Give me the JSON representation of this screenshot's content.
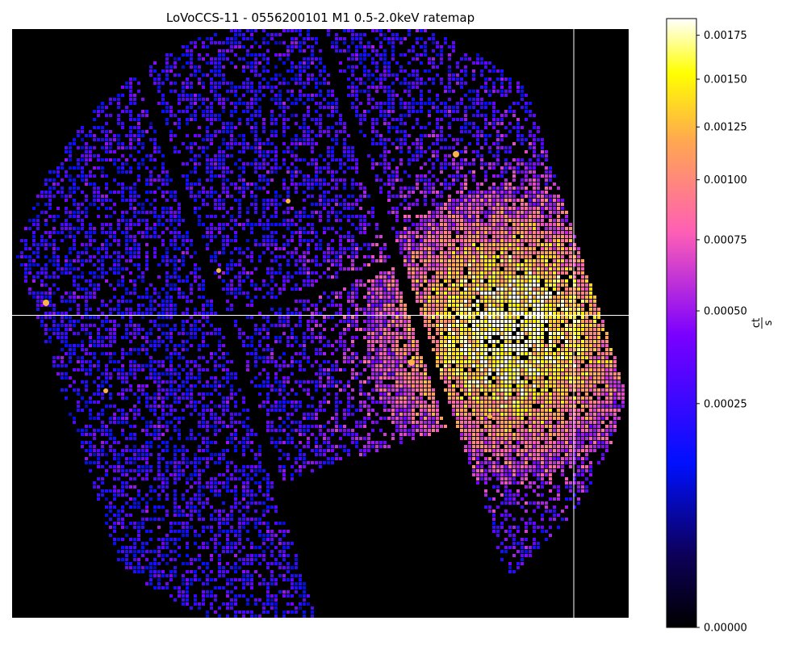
{
  "chart_data": {
    "type": "heatmap",
    "title": "LoVoCCS-11 - 0556200101 M1 0.5-2.0keV ratemap",
    "xlabel": "",
    "ylabel": "",
    "colormap": "gnuplot2",
    "background_color": "#000000",
    "crosshair_color": "#ffffff",
    "colorbar": {
      "label": "ct/s",
      "label_numerator": "ct",
      "label_denominator": "s",
      "scale": "power",
      "range": [
        0.0,
        0.00185
      ],
      "ticks": [
        {
          "value": 0.0,
          "label": "0.00000"
        },
        {
          "value": 0.00025,
          "label": "0.00025"
        },
        {
          "value": 0.0005,
          "label": "0.00050"
        },
        {
          "value": 0.00075,
          "label": "0.00075"
        },
        {
          "value": 0.001,
          "label": "0.00100"
        },
        {
          "value": 0.00125,
          "label": "0.00125"
        },
        {
          "value": 0.0015,
          "label": "0.00150"
        },
        {
          "value": 0.00175,
          "label": "0.00175"
        }
      ]
    },
    "features": {
      "extended_emission": "bright diffuse cluster emission on the right of the field, peaking near the crosshair",
      "point_sources": 7,
      "chip_gaps": "dark diagonal gaps separating the MOS1 CCD chips",
      "missing_chip": "one CCD chip absent at the lower centre"
    }
  }
}
